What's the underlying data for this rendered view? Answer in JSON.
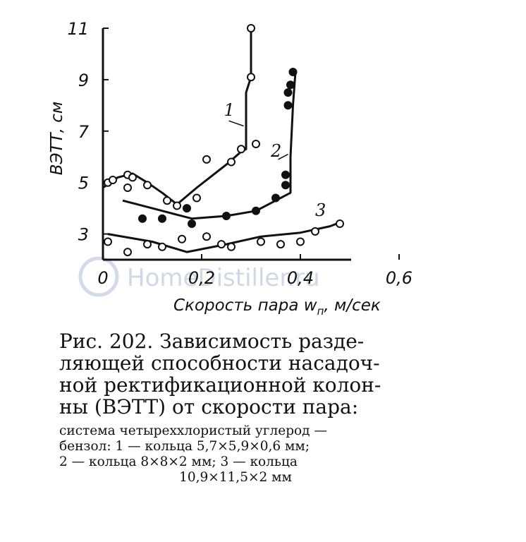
{
  "chart_data": {
    "type": "scatter",
    "xlabel": "Скорость пара w",
    "xlabel_sub": "п",
    "xlabel_unit": ", м/сек",
    "ylabel": "ВЭТТ, см",
    "xlim": [
      0,
      0.6
    ],
    "ylim": [
      2,
      11
    ],
    "xticks": [
      "0",
      "0,2",
      "0,4",
      "0,6"
    ],
    "xtick_values": [
      0,
      0.2,
      0.4,
      0.6
    ],
    "yticks": [
      "3",
      "5",
      "7",
      "9",
      "11"
    ],
    "ytick_values": [
      3,
      5,
      7,
      9,
      11
    ],
    "grid": false,
    "series": [
      {
        "name": "1",
        "marker": "open-circle",
        "points": [
          [
            0.01,
            5.0
          ],
          [
            0.02,
            5.1
          ],
          [
            0.05,
            5.3
          ],
          [
            0.06,
            5.2
          ],
          [
            0.05,
            4.8
          ],
          [
            0.09,
            4.9
          ],
          [
            0.13,
            4.3
          ],
          [
            0.15,
            4.1
          ],
          [
            0.19,
            4.4
          ],
          [
            0.21,
            5.9
          ],
          [
            0.26,
            5.8
          ],
          [
            0.28,
            6.3
          ],
          [
            0.31,
            6.5
          ],
          [
            0.3,
            9.1
          ],
          [
            0.3,
            11.0
          ]
        ],
        "curve": [
          [
            0.0,
            4.8
          ],
          [
            0.03,
            5.2
          ],
          [
            0.06,
            5.35
          ],
          [
            0.09,
            5.0
          ],
          [
            0.12,
            4.6
          ],
          [
            0.15,
            4.15
          ],
          [
            0.19,
            4.8
          ],
          [
            0.25,
            5.7
          ],
          [
            0.28,
            6.2
          ],
          [
            0.29,
            6.3
          ],
          [
            0.29,
            8.5
          ],
          [
            0.3,
            9.1
          ],
          [
            0.3,
            11.0
          ]
        ]
      },
      {
        "name": "2",
        "marker": "filled-circle",
        "points": [
          [
            0.08,
            3.6
          ],
          [
            0.12,
            3.6
          ],
          [
            0.17,
            4.0
          ],
          [
            0.18,
            3.4
          ],
          [
            0.25,
            3.7
          ],
          [
            0.31,
            3.9
          ],
          [
            0.35,
            4.4
          ],
          [
            0.37,
            4.9
          ],
          [
            0.37,
            5.3
          ],
          [
            0.375,
            8.0
          ],
          [
            0.375,
            8.5
          ],
          [
            0.38,
            8.8
          ],
          [
            0.385,
            9.3
          ]
        ],
        "curve": [
          [
            0.04,
            4.3
          ],
          [
            0.1,
            4.0
          ],
          [
            0.18,
            3.6
          ],
          [
            0.25,
            3.7
          ],
          [
            0.31,
            3.9
          ],
          [
            0.35,
            4.3
          ],
          [
            0.38,
            4.6
          ],
          [
            0.38,
            6.0
          ],
          [
            0.385,
            8.0
          ],
          [
            0.39,
            9.3
          ]
        ]
      },
      {
        "name": "3",
        "marker": "open-circle",
        "points": [
          [
            0.01,
            2.7
          ],
          [
            0.05,
            2.3
          ],
          [
            0.09,
            2.6
          ],
          [
            0.12,
            2.5
          ],
          [
            0.16,
            2.8
          ],
          [
            0.21,
            2.9
          ],
          [
            0.24,
            2.6
          ],
          [
            0.26,
            2.5
          ],
          [
            0.32,
            2.7
          ],
          [
            0.36,
            2.6
          ],
          [
            0.4,
            2.7
          ],
          [
            0.43,
            3.1
          ],
          [
            0.48,
            3.4
          ]
        ],
        "curve": [
          [
            0.01,
            3.0
          ],
          [
            0.1,
            2.7
          ],
          [
            0.17,
            2.3
          ],
          [
            0.25,
            2.6
          ],
          [
            0.32,
            2.9
          ],
          [
            0.4,
            3.05
          ],
          [
            0.46,
            3.3
          ],
          [
            0.48,
            3.45
          ]
        ]
      }
    ],
    "curve_labels": [
      "1",
      "2",
      "3"
    ]
  },
  "caption": {
    "title_lines": [
      "Рис. 202. Зависимость разде-",
      "ляющей способности насадоч-",
      "ной ректификационной колон-",
      "ны (ВЭТТ) от скорости пара:"
    ],
    "body_lines": [
      "система четыреххлористый углерод —",
      "бензол: 1 — кольца 5,7×5,9×0,6 мм;",
      "2 — кольца 8×8×2 мм; 3 — кольца",
      "10,9×11,5×2 мм"
    ]
  },
  "watermark": "HomeDistiller.ru"
}
